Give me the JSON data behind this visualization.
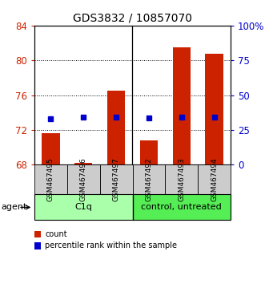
{
  "title": "GDS3832 / 10857070",
  "samples": [
    "GSM467495",
    "GSM467496",
    "GSM467497",
    "GSM467492",
    "GSM467493",
    "GSM467494"
  ],
  "groups": [
    {
      "label": "C1q",
      "indices": [
        0,
        1,
        2
      ],
      "color": "#aaffaa"
    },
    {
      "label": "control, untreated",
      "indices": [
        3,
        4,
        5
      ],
      "color": "#55ee55"
    }
  ],
  "bar_base": 68,
  "bar_tops": [
    71.6,
    68.2,
    76.5,
    70.8,
    81.5,
    80.8
  ],
  "dot_values": [
    73.3,
    73.5,
    73.5,
    73.4,
    73.5,
    73.5
  ],
  "ylim": [
    68,
    84
  ],
  "yticks": [
    68,
    72,
    76,
    80,
    84
  ],
  "y2lim": [
    0,
    100
  ],
  "y2ticks": [
    0,
    25,
    50,
    75,
    100
  ],
  "y2ticklabels": [
    "0",
    "25",
    "50",
    "75",
    "100%"
  ],
  "bar_color": "#cc2200",
  "dot_color": "#0000cc",
  "gridlines": [
    72,
    76,
    80
  ],
  "bar_color_red": "#cc2200",
  "dot_color_blue": "#0000cc",
  "ytick_color": "#cc2200",
  "y2tick_color": "#0000cc",
  "sample_box_color": "#cccccc",
  "agent_label": "agent"
}
